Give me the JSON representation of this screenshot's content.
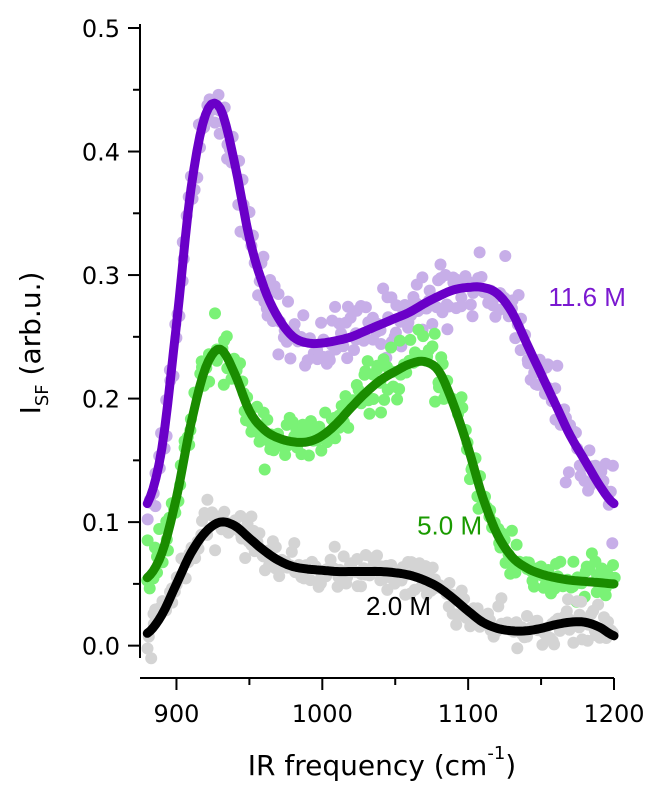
{
  "chart_data": {
    "type": "line",
    "title": "",
    "xlabel": "IR frequency (cm",
    "xlabel_sup": "-1",
    "xlabel_close": ")",
    "ylabel_main": "I",
    "ylabel_sub": "SF",
    "ylabel_rest": " (arb.u.)",
    "xlim": [
      875,
      1200
    ],
    "ylim": [
      -0.01,
      0.5
    ],
    "xticks": [
      900,
      1000,
      1100,
      1200
    ],
    "xtick_labels": [
      "900",
      "1000",
      "1100",
      "1200"
    ],
    "yticks": [
      0.0,
      0.1,
      0.2,
      0.3,
      0.4,
      0.5
    ],
    "ytick_labels": [
      "0.0",
      "0.1",
      "0.2",
      "0.3",
      "0.4",
      "0.5"
    ],
    "grid": false,
    "legend": "inline labels",
    "series": [
      {
        "name": "11.6 M",
        "fit_color": "#6a00c8",
        "data_color": "#c7aee8",
        "label_pos": [
          1155,
          0.275
        ],
        "label_color": "#7a18d0",
        "x": [
          880,
          890,
          900,
          910,
          920,
          930,
          940,
          950,
          960,
          970,
          980,
          990,
          1000,
          1010,
          1020,
          1030,
          1040,
          1050,
          1060,
          1070,
          1080,
          1090,
          1100,
          1110,
          1120,
          1130,
          1140,
          1150,
          1160,
          1170,
          1180,
          1190,
          1200
        ],
        "y": [
          0.115,
          0.16,
          0.26,
          0.37,
          0.43,
          0.435,
          0.39,
          0.33,
          0.29,
          0.265,
          0.25,
          0.245,
          0.245,
          0.247,
          0.25,
          0.255,
          0.26,
          0.265,
          0.27,
          0.277,
          0.283,
          0.288,
          0.29,
          0.29,
          0.285,
          0.27,
          0.245,
          0.22,
          0.195,
          0.17,
          0.15,
          0.13,
          0.115
        ]
      },
      {
        "name": "5.0 M",
        "fit_color": "#1a8c00",
        "data_color": "#7af276",
        "label_pos": [
          1065,
          0.09
        ],
        "label_color": "#1a9a00",
        "x": [
          880,
          890,
          900,
          910,
          920,
          930,
          940,
          950,
          960,
          970,
          980,
          990,
          1000,
          1010,
          1020,
          1030,
          1040,
          1050,
          1060,
          1070,
          1080,
          1090,
          1100,
          1110,
          1120,
          1130,
          1140,
          1150,
          1160,
          1170,
          1180,
          1190,
          1200
        ],
        "y": [
          0.055,
          0.075,
          0.12,
          0.18,
          0.225,
          0.24,
          0.22,
          0.19,
          0.175,
          0.168,
          0.165,
          0.165,
          0.17,
          0.18,
          0.193,
          0.205,
          0.215,
          0.222,
          0.228,
          0.23,
          0.222,
          0.195,
          0.16,
          0.12,
          0.09,
          0.072,
          0.063,
          0.058,
          0.055,
          0.053,
          0.052,
          0.051,
          0.05
        ]
      },
      {
        "name": "2.0 M",
        "fit_color": "#000000",
        "data_color": "#d4d4d4",
        "label_pos": [
          1030,
          0.025
        ],
        "label_color": "#000000",
        "x": [
          880,
          890,
          900,
          910,
          920,
          930,
          940,
          950,
          960,
          970,
          980,
          990,
          1000,
          1010,
          1020,
          1030,
          1040,
          1050,
          1060,
          1070,
          1080,
          1090,
          1100,
          1110,
          1120,
          1130,
          1140,
          1150,
          1160,
          1170,
          1180,
          1190,
          1200
        ],
        "y": [
          0.01,
          0.025,
          0.05,
          0.075,
          0.092,
          0.1,
          0.097,
          0.087,
          0.077,
          0.069,
          0.064,
          0.062,
          0.061,
          0.06,
          0.06,
          0.06,
          0.06,
          0.059,
          0.057,
          0.053,
          0.047,
          0.038,
          0.028,
          0.019,
          0.014,
          0.012,
          0.012,
          0.014,
          0.017,
          0.019,
          0.019,
          0.015,
          0.008
        ]
      }
    ]
  }
}
